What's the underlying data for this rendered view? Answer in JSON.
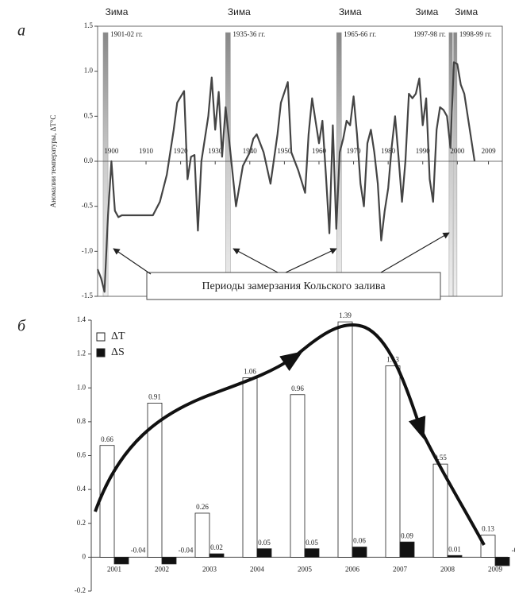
{
  "chart_data": [
    {
      "type": "line",
      "panel": "а",
      "ylabel": "Аномалии температуры, ΔT°C",
      "color": "#444444",
      "xlim": [
        1896,
        2013
      ],
      "xticks": [
        1900,
        1910,
        1920,
        1930,
        1940,
        1950,
        1960,
        1970,
        1980,
        1990,
        2000,
        2009
      ],
      "ylim": [
        -1.5,
        1.5
      ],
      "yticks": [
        -1.5,
        {
          "value": -1,
          "label": "-1.0"
        },
        -0.5,
        {
          "value": 0,
          "label": "0.0"
        },
        0.5,
        {
          "value": 1,
          "label": "1.0"
        },
        1.5
      ],
      "x": [
        1896,
        1897,
        1898,
        1899,
        1900,
        1901,
        1902,
        1903,
        1906,
        1910,
        1912,
        1914,
        1916,
        1918,
        1919,
        1921,
        1922,
        1923,
        1924,
        1925,
        1926,
        1928,
        1929,
        1930,
        1931,
        1932,
        1933,
        1934,
        1936,
        1938,
        1940,
        1941,
        1942,
        1944,
        1946,
        1948,
        1949,
        1951,
        1952,
        1954,
        1956,
        1957,
        1958,
        1959,
        1960,
        1961,
        1962,
        1963,
        1964,
        1965,
        1966,
        1967,
        1968,
        1969,
        1970,
        1971,
        1972,
        1973,
        1974,
        1975,
        1976,
        1977,
        1978,
        1979,
        1980,
        1981,
        1982,
        1983,
        1984,
        1985,
        1986,
        1987,
        1988,
        1989,
        1990,
        1991,
        1992,
        1993,
        1994,
        1995,
        1996,
        1997,
        1998,
        1999,
        2000,
        2001,
        2002,
        2005
      ],
      "values": [
        -1.2,
        -1.3,
        -1.45,
        -0.6,
        0.0,
        -0.55,
        -0.62,
        -0.6,
        -0.6,
        -0.6,
        -0.6,
        -0.45,
        -0.15,
        0.35,
        0.65,
        0.78,
        -0.2,
        0.05,
        0.07,
        -0.77,
        0.0,
        0.5,
        0.93,
        0.35,
        0.77,
        0.05,
        0.6,
        0.25,
        -0.5,
        -0.05,
        0.1,
        0.25,
        0.3,
        0.1,
        -0.25,
        0.3,
        0.65,
        0.88,
        0.1,
        -0.1,
        -0.35,
        0.3,
        0.7,
        0.45,
        0.2,
        0.45,
        -0.15,
        -0.8,
        0.4,
        -0.75,
        0.1,
        0.25,
        0.45,
        0.4,
        0.72,
        0.3,
        -0.25,
        -0.5,
        0.2,
        0.35,
        0.1,
        -0.25,
        -0.88,
        -0.55,
        -0.3,
        0.15,
        0.5,
        0.05,
        -0.45,
        0.0,
        0.75,
        0.7,
        0.75,
        0.92,
        0.4,
        0.7,
        -0.2,
        -0.45,
        0.35,
        0.6,
        0.57,
        0.5,
        0.15,
        1.1,
        1.08,
        0.85,
        0.75,
        0.0
      ],
      "bands": [
        {
          "x": [
            1897.6,
            1899
          ],
          "label": "1901-02 гг.",
          "season": "Зима"
        },
        {
          "x": [
            1933,
            1934.4
          ],
          "label": "1935-36 гг.",
          "season": "Зима"
        },
        {
          "x": [
            1965.1,
            1966.5
          ],
          "label": "1965-66 гг.",
          "season": "Зима"
        },
        {
          "x": [
            1997.6,
            1998.6
          ],
          "label": "1997-98 гг.",
          "season": "Зима"
        },
        {
          "x": [
            1998.9,
            1999.9
          ],
          "label": "1998-99 гг.",
          "season": "Зима"
        }
      ],
      "annotation": "Периоды замерзания Кольского залива"
    },
    {
      "type": "bar",
      "panel": "б",
      "categories": [
        "2001",
        "2002",
        "2003",
        "2004",
        "2005",
        "2006",
        "2007",
        "2008",
        "2009"
      ],
      "series": [
        {
          "name": "ΔT",
          "color": "#ffffff",
          "values": [
            0.66,
            0.91,
            0.26,
            1.06,
            0.96,
            1.39,
            1.13,
            0.55,
            0.13
          ]
        },
        {
          "name": "ΔS",
          "color": "#111111",
          "values": [
            -0.04,
            -0.04,
            0.02,
            0.05,
            0.05,
            0.06,
            0.09,
            0.01,
            -0.05
          ]
        }
      ],
      "ylim": [
        -0.2,
        1.4
      ],
      "yticks": [
        -0.2,
        0,
        0.2,
        0.4,
        0.6,
        0.8,
        {
          "value": 1,
          "label": "1.0"
        },
        1.2,
        1.4
      ]
    }
  ]
}
